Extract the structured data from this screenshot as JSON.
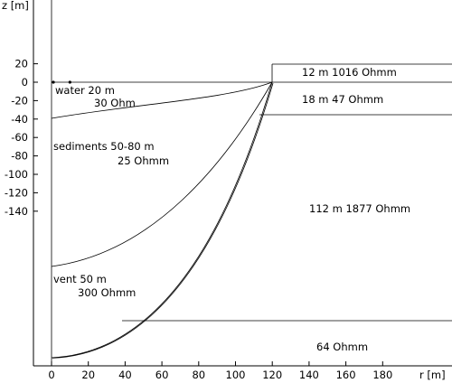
{
  "axes": {
    "y_title": "z [m]",
    "x_title": "r [m]",
    "y_ticks": [
      20,
      0,
      -20,
      -40,
      -60,
      -80,
      -100,
      -120,
      -140
    ],
    "x_ticks": [
      0,
      20,
      40,
      60,
      80,
      100,
      120,
      140,
      160,
      180
    ],
    "x_range": [
      -10,
      200
    ],
    "y_range": [
      -155,
      40
    ]
  },
  "regions": {
    "water": {
      "line1": "water  20 m",
      "line2": "30 Ohm"
    },
    "sediments": {
      "line1": "sediments  50-80 m",
      "line2": "25 Ohmm"
    },
    "vent": {
      "line1": "vent  50 m",
      "line2": "300 Ohmm"
    },
    "layer_top": {
      "label": "12 m   1016 Ohmm"
    },
    "layer_second": {
      "label": "18 m   47 Ohmm"
    },
    "layer_main": {
      "label": "112 m    1877 Ohmm"
    },
    "layer_bottom": {
      "label": "64 Ohmm"
    }
  },
  "markers": [
    {
      "name": "station-marker-1",
      "r": 1,
      "z": 0
    },
    {
      "name": "station-marker-2",
      "r": 10,
      "z": 0
    }
  ]
}
